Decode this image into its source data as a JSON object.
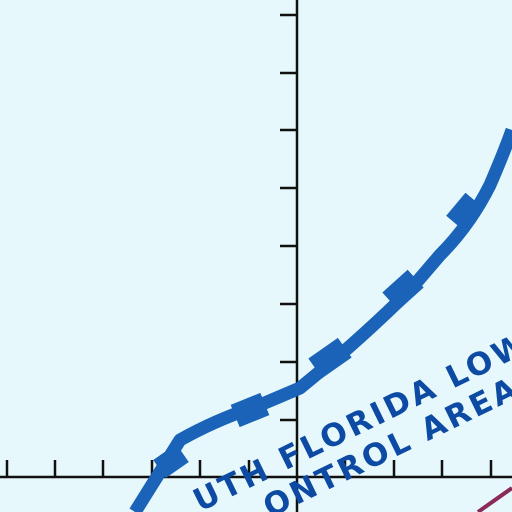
{
  "map": {
    "background_color": "#e6f8fb",
    "grid_color": "#111111",
    "boundary_color": "#1a63b8",
    "label_color": "#0d4aa3",
    "secondary_line_color": "#8a2a5a",
    "labels": {
      "line1": "UTH FLORIDA LOW",
      "line2": "ONTROL AREA"
    }
  }
}
